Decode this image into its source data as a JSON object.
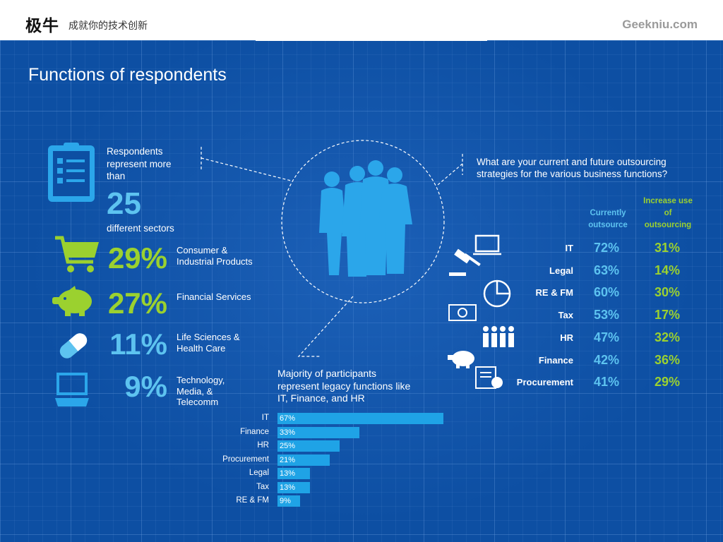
{
  "header": {
    "logo": "极牛",
    "slogan": "成就你的技术创新",
    "site": "Geekniu.com"
  },
  "title": "Functions of respondents",
  "intro": {
    "text": "Respondents represent more than",
    "number": "25",
    "sub": "different sectors"
  },
  "sectors": [
    {
      "pct": "29%",
      "label": "Consumer & Industrial Products",
      "icon": "shopping-cart-icon"
    },
    {
      "pct": "27%",
      "label": "Financial Services",
      "icon": "piggy-bank-icon"
    },
    {
      "pct": "11%",
      "label": "Life Sciences & Health Care",
      "icon": "pill-icon"
    },
    {
      "pct": "9%",
      "label": "Technology, Media, & Telecomm",
      "icon": "laptop-icon"
    }
  ],
  "center_caption": "Majority of participants represent legacy functions like IT, Finance, and HR",
  "question": "What are your current and future outsourcing strategies for the various business functions?",
  "columns": {
    "current": "Currently outsource",
    "increase": "Increase use of outsourcing"
  },
  "colors": {
    "background": "#0d4fa3",
    "green": "#9bd12f",
    "light_blue": "#5dc3f0",
    "bar": "#1fa3e6"
  },
  "chart_data": [
    {
      "type": "bar",
      "orientation": "horizontal",
      "title": "Majority of participants represent legacy functions like IT, Finance, and HR",
      "categories": [
        "IT",
        "Finance",
        "HR",
        "Procurement",
        "Legal",
        "Tax",
        "RE & FM"
      ],
      "values": [
        67,
        33,
        25,
        21,
        13,
        13,
        9
      ],
      "value_labels": [
        "67%",
        "33%",
        "25%",
        "21%",
        "13%",
        "13%",
        "9%"
      ],
      "xlim": [
        0,
        100
      ]
    },
    {
      "type": "table",
      "title": "What are your current and future outsourcing strategies for the various business functions?",
      "rows": [
        {
          "function": "IT",
          "current": "72%",
          "increase": "31%"
        },
        {
          "function": "Legal",
          "current": "63%",
          "increase": "14%"
        },
        {
          "function": "RE & FM",
          "current": "60%",
          "increase": "30%"
        },
        {
          "function": "Tax",
          "current": "53%",
          "increase": "17%"
        },
        {
          "function": "HR",
          "current": "47%",
          "increase": "32%"
        },
        {
          "function": "Finance",
          "current": "42%",
          "increase": "36%"
        },
        {
          "function": "Procurement",
          "current": "41%",
          "increase": "29%"
        }
      ]
    }
  ]
}
